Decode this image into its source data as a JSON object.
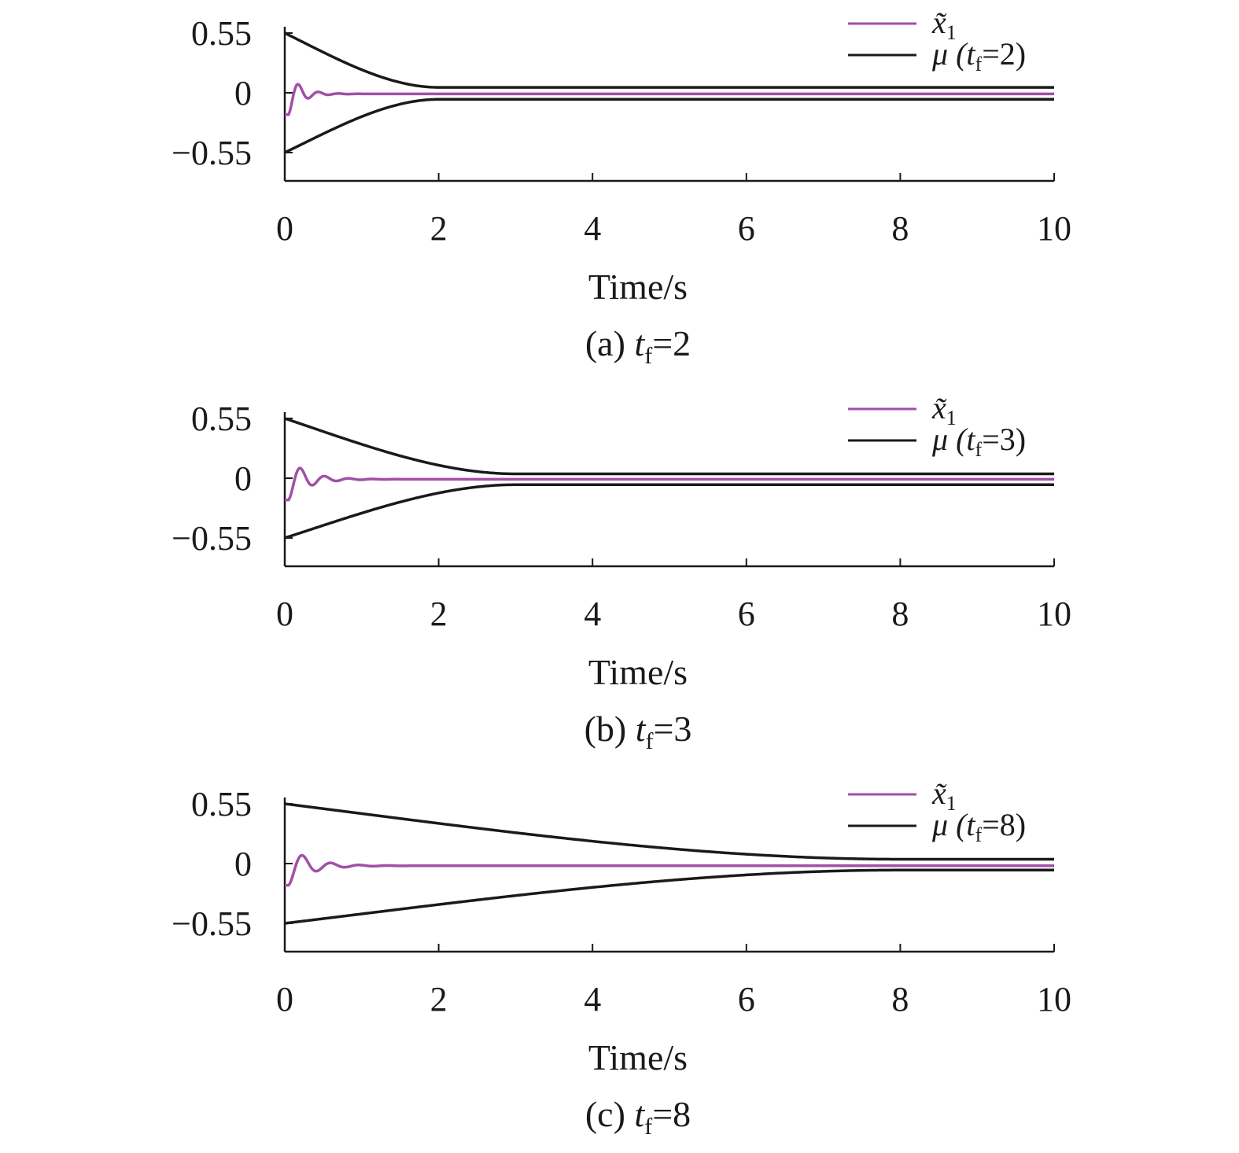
{
  "colors": {
    "x1": "#a14fa8",
    "mu": "#1a1a1a"
  },
  "chart_data": [
    {
      "type": "line",
      "caption": {
        "prefix": "(a) ",
        "t": "t",
        "sub": "f",
        "suffix": "=2"
      },
      "xlabel": "Time/s",
      "ylabel": "",
      "xlim": [
        0,
        10
      ],
      "ylim": [
        -0.8,
        0.55
      ],
      "xticks": [
        "0",
        "2",
        "4",
        "6",
        "8",
        "10"
      ],
      "yticks": [
        {
          "value": 0.55,
          "label": "0.55"
        },
        {
          "value": 0,
          "label": "0"
        },
        {
          "value": -0.55,
          "label": "−0.55"
        }
      ],
      "grid": false,
      "legend_position": "top-right",
      "legend": [
        {
          "key": "x1",
          "main": "x̃",
          "sub": "1",
          "tail": ""
        },
        {
          "key": "mu",
          "main": "μ (t",
          "sub": "f",
          "tail": "=2)"
        }
      ],
      "series": [
        {
          "key": "x1",
          "x0": -0.2,
          "decay": 6,
          "omega": 24,
          "settle": -0.01
        },
        {
          "key": "mu_upper",
          "start": 0.55,
          "end": 0.05,
          "tf": 2,
          "shape": "decay"
        },
        {
          "key": "mu_lower",
          "start": -0.55,
          "end": -0.06,
          "tf": 2,
          "shape": "decay"
        }
      ]
    },
    {
      "type": "line",
      "caption": {
        "prefix": "(b) ",
        "t": "t",
        "sub": "f",
        "suffix": "=3"
      },
      "xlabel": "Time/s",
      "ylabel": "",
      "xlim": [
        0,
        10
      ],
      "ylim": [
        -0.8,
        0.55
      ],
      "xticks": [
        "0",
        "2",
        "4",
        "6",
        "8",
        "10"
      ],
      "yticks": [
        {
          "value": 0.55,
          "label": "0.55"
        },
        {
          "value": 0,
          "label": "0"
        },
        {
          "value": -0.55,
          "label": "−0.55"
        }
      ],
      "grid": false,
      "legend_position": "top-right",
      "legend": [
        {
          "key": "x1",
          "main": "x̃",
          "sub": "1",
          "tail": ""
        },
        {
          "key": "mu",
          "main": "μ (t",
          "sub": "f",
          "tail": "=3)"
        }
      ],
      "series": [
        {
          "key": "x1",
          "x0": -0.2,
          "decay": 4,
          "omega": 20,
          "settle": -0.01
        },
        {
          "key": "mu_upper",
          "start": 0.55,
          "end": 0.04,
          "tf": 3,
          "shape": "decay"
        },
        {
          "key": "mu_lower",
          "start": -0.55,
          "end": -0.06,
          "tf": 3,
          "shape": "decay"
        }
      ]
    },
    {
      "type": "line",
      "caption": {
        "prefix": "(c) ",
        "t": "t",
        "sub": "f",
        "suffix": "=8"
      },
      "xlabel": "Time/s",
      "ylabel": "",
      "xlim": [
        0,
        10
      ],
      "ylim": [
        -0.8,
        0.55
      ],
      "xticks": [
        "0",
        "2",
        "4",
        "6",
        "8",
        "10"
      ],
      "yticks": [
        {
          "value": 0.55,
          "label": "0.55"
        },
        {
          "value": 0,
          "label": "0"
        },
        {
          "value": -0.55,
          "label": "−0.55"
        }
      ],
      "grid": false,
      "legend_position": "top-right",
      "legend": [
        {
          "key": "x1",
          "main": "x̃",
          "sub": "1",
          "tail": ""
        },
        {
          "key": "mu",
          "main": "μ (t",
          "sub": "f",
          "tail": "=8)"
        }
      ],
      "series": [
        {
          "key": "x1",
          "x0": -0.2,
          "decay": 3.5,
          "omega": 17,
          "settle": -0.02
        },
        {
          "key": "mu_upper",
          "start": 0.55,
          "end": 0.04,
          "tf": 8,
          "shape": "decay"
        },
        {
          "key": "mu_lower",
          "start": -0.55,
          "end": -0.06,
          "tf": 8,
          "shape": "decay"
        }
      ]
    }
  ]
}
